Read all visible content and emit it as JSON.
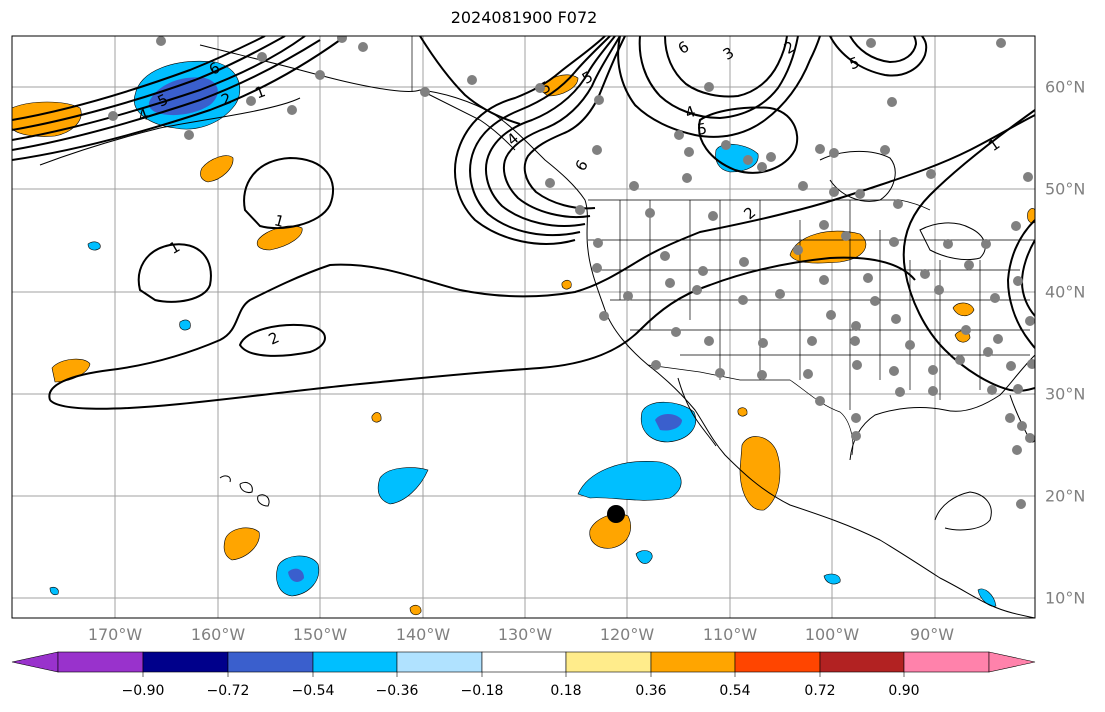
{
  "title": "2024081900 F072",
  "map": {
    "lon_labels": [
      "170°W",
      "160°W",
      "150°W",
      "140°W",
      "130°W",
      "120°W",
      "110°W",
      "100°W",
      "90°W"
    ],
    "lat_labels": [
      "60°N",
      "50°N",
      "40°N",
      "30°N",
      "20°N",
      "10°N"
    ],
    "contour_labels": [
      "6",
      "5",
      "4",
      "2",
      "1",
      "1",
      "1",
      "2",
      "5",
      "4",
      "6",
      "5",
      "6",
      "3",
      "4",
      "5",
      "5",
      "2",
      "2",
      "1"
    ],
    "label_color": "#808080",
    "contour_color": "#000000",
    "station_color": "#808080"
  },
  "colorbar": {
    "tick_labels": [
      "−0.90",
      "−0.72",
      "−0.54",
      "−0.36",
      "−0.18",
      "0.18",
      "0.36",
      "0.54",
      "0.72",
      "0.90"
    ],
    "colors": [
      "#9932cc",
      "#00008b",
      "#3a5fcd",
      "#00bfff",
      "#b0e2ff",
      "#ffffff",
      "#ffec8b",
      "#ffa500",
      "#ff4500",
      "#b22222",
      "#ff82ab"
    ]
  }
}
